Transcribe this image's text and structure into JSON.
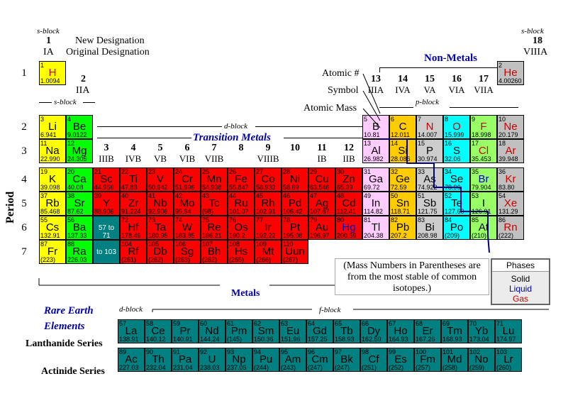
{
  "legend": {
    "s_block_left": "s-block",
    "s_block_right": "s-block",
    "s_block_row2": "s-block",
    "d_block": "d-block",
    "p_block": "p-block",
    "f_block": "f-block",
    "d_block_rare": "d-block",
    "new_designation": "New Designation",
    "original_designation": "Original Designation",
    "group1_new": "1",
    "group1_orig": "IA",
    "group18_new": "18",
    "group18_orig": "VIIIA",
    "group2_new": "2",
    "group2_orig": "IIA",
    "atomic_number": "Atomic #",
    "symbol": "Symbol",
    "atomic_mass": "Atomic Mass",
    "period": "Period",
    "non_metals": "Non-Metals",
    "transition_metals": "Transition Metals",
    "metals": "Metals",
    "rare_earth_line1": "Rare Earth",
    "rare_earth_line2": "Elements",
    "lanthanide_series": "Lanthanide Series",
    "actinide_series": "Actinide Series",
    "note_line1": "(Mass Numbers in Parentheses are",
    "note_line2": "from the most stable of common",
    "note_line3": "isotopes.)",
    "phases_title": "Phases",
    "phase_solid": "Solid",
    "phase_liquid": "Liquid",
    "phase_gas": "Gas"
  },
  "periods": [
    "1",
    "2",
    "3",
    "4",
    "5",
    "6",
    "7"
  ],
  "group_labels": [
    {
      "n": "3",
      "o": "IIIB"
    },
    {
      "n": "4",
      "o": "IVB"
    },
    {
      "n": "5",
      "o": "VB"
    },
    {
      "n": "6",
      "o": "VIB"
    },
    {
      "n": "7",
      "o": "VIIB"
    },
    {
      "n": "8",
      "o": ""
    },
    {
      "n": "9",
      "o": "VIIIB"
    },
    {
      "n": "10",
      "o": ""
    },
    {
      "n": "11",
      "o": "IB"
    },
    {
      "n": "12",
      "o": "IIB"
    },
    {
      "n": "13",
      "o": "IIIA"
    },
    {
      "n": "14",
      "o": "IVA"
    },
    {
      "n": "15",
      "o": "VA"
    },
    {
      "n": "16",
      "o": "VIA"
    },
    {
      "n": "17",
      "o": "VIIA"
    }
  ],
  "colors": {
    "nonmetal_gas_cyan": "#00ffff",
    "alkali": "#ffff00",
    "alkaline": "#00ff00",
    "transition": "#ff0000",
    "rare": "#008080",
    "boron_group": "#ffccff",
    "carbon_group": "#ffcc00",
    "other_gray": "#cccccc",
    "noble": "#c0c0c0",
    "nonmetal_green": "#99ff66",
    "nonmetal_blue_title": "#0000aa",
    "gas_text": "#cc0000",
    "liquid_text": "#000099"
  },
  "elements": [
    {
      "z": "1",
      "sym": "H",
      "mass": "1.0094",
      "bg": "#ffff00",
      "phase": "gas"
    },
    {
      "z": "2",
      "sym": "He",
      "mass": "4.00260",
      "bg": "#c0c0c0",
      "phase": "gas"
    },
    {
      "z": "3",
      "sym": "Li",
      "mass": "6.941",
      "bg": "#ffff00"
    },
    {
      "z": "4",
      "sym": "Be",
      "mass": "9.0122",
      "bg": "#00ff00"
    },
    {
      "z": "5",
      "sym": "B",
      "mass": "10.81",
      "bg": "#ffccff"
    },
    {
      "z": "6",
      "sym": "C",
      "mass": "12.011",
      "bg": "#ffcc00"
    },
    {
      "z": "7",
      "sym": "N",
      "mass": "14.007",
      "bg": "#cccccc",
      "phase": "gas"
    },
    {
      "z": "8",
      "sym": "O",
      "mass": "15.999",
      "bg": "#00ffff",
      "phase": "gas"
    },
    {
      "z": "9",
      "sym": "F",
      "mass": "18.998",
      "bg": "#99ff66",
      "phase": "gas"
    },
    {
      "z": "10",
      "sym": "Ne",
      "mass": "20.179",
      "bg": "#c0c0c0",
      "phase": "gas"
    },
    {
      "z": "11",
      "sym": "Na",
      "mass": "22.990",
      "bg": "#ffff00"
    },
    {
      "z": "12",
      "sym": "Mg",
      "mass": "24.305",
      "bg": "#00ff00"
    },
    {
      "z": "13",
      "sym": "Al",
      "mass": "26.982",
      "bg": "#ffccff"
    },
    {
      "z": "14",
      "sym": "Si",
      "mass": "28.086",
      "bg": "#ffcc00"
    },
    {
      "z": "15",
      "sym": "P",
      "mass": "30.974",
      "bg": "#cccccc"
    },
    {
      "z": "16",
      "sym": "S",
      "mass": "32.06",
      "bg": "#00ffff"
    },
    {
      "z": "17",
      "sym": "Cl",
      "mass": "35.453",
      "bg": "#99ff66",
      "phase": "gas"
    },
    {
      "z": "18",
      "sym": "Ar",
      "mass": "39.948",
      "bg": "#c0c0c0",
      "phase": "gas"
    },
    {
      "z": "19",
      "sym": "K",
      "mass": "39.098",
      "bg": "#ffff00"
    },
    {
      "z": "20",
      "sym": "Ca",
      "mass": "40.08",
      "bg": "#00ff00"
    },
    {
      "z": "21",
      "sym": "Sc",
      "mass": "44.956",
      "bg": "#ff0000"
    },
    {
      "z": "22",
      "sym": "Ti",
      "mass": "47.88",
      "bg": "#ff0000"
    },
    {
      "z": "23",
      "sym": "V",
      "mass": "50.942",
      "bg": "#ff0000"
    },
    {
      "z": "24",
      "sym": "Cr",
      "mass": "51.996",
      "bg": "#ff0000"
    },
    {
      "z": "25",
      "sym": "Mn",
      "mass": "54.938",
      "bg": "#ff0000"
    },
    {
      "z": "26",
      "sym": "Fe",
      "mass": "55.847",
      "bg": "#ff0000"
    },
    {
      "z": "27",
      "sym": "Co",
      "mass": "58.933",
      "bg": "#ff0000"
    },
    {
      "z": "28",
      "sym": "Ni",
      "mass": "58.69",
      "bg": "#ff0000"
    },
    {
      "z": "29",
      "sym": "Cu",
      "mass": "63.546",
      "bg": "#ff0000"
    },
    {
      "z": "30",
      "sym": "Zn",
      "mass": "65.39",
      "bg": "#ff0000"
    },
    {
      "z": "31",
      "sym": "Ga",
      "mass": "69.72",
      "bg": "#ffccff"
    },
    {
      "z": "32",
      "sym": "Ge",
      "mass": "72.59",
      "bg": "#ffcc00"
    },
    {
      "z": "33",
      "sym": "As",
      "mass": "74.922",
      "bg": "#cccccc"
    },
    {
      "z": "34",
      "sym": "Se",
      "mass": "78.96",
      "bg": "#00ffff"
    },
    {
      "z": "35",
      "sym": "Br",
      "mass": "79.904",
      "bg": "#99ff66",
      "phase": "liquid"
    },
    {
      "z": "36",
      "sym": "Kr",
      "mass": "83.80",
      "bg": "#c0c0c0",
      "phase": "gas"
    },
    {
      "z": "37",
      "sym": "Rb",
      "mass": "85.468",
      "bg": "#ffff00"
    },
    {
      "z": "38",
      "sym": "Sr",
      "mass": "87.62",
      "bg": "#00ff00"
    },
    {
      "z": "39",
      "sym": "Y",
      "mass": "88.906",
      "bg": "#ff0000"
    },
    {
      "z": "40",
      "sym": "Zr",
      "mass": "91.224",
      "bg": "#ff0000"
    },
    {
      "z": "41",
      "sym": "Nb",
      "mass": "92.906",
      "bg": "#ff0000"
    },
    {
      "z": "42",
      "sym": "Mo",
      "mass": "95.94",
      "bg": "#ff0000"
    },
    {
      "z": "43",
      "sym": "Tc",
      "mass": "(98)",
      "bg": "#ff0000"
    },
    {
      "z": "44",
      "sym": "Ru",
      "mass": "101.07",
      "bg": "#ff0000"
    },
    {
      "z": "45",
      "sym": "Rh",
      "mass": "102.91",
      "bg": "#ff0000"
    },
    {
      "z": "46",
      "sym": "Pd",
      "mass": "106.42",
      "bg": "#ff0000"
    },
    {
      "z": "47",
      "sym": "Ag",
      "mass": "107.87",
      "bg": "#ff0000"
    },
    {
      "z": "48",
      "sym": "Cd",
      "mass": "112.41",
      "bg": "#ff0000"
    },
    {
      "z": "49",
      "sym": "In",
      "mass": "114.82",
      "bg": "#ffccff"
    },
    {
      "z": "50",
      "sym": "Sn",
      "mass": "118.71",
      "bg": "#ffcc00"
    },
    {
      "z": "51",
      "sym": "Sb",
      "mass": "121.75",
      "bg": "#cccccc"
    },
    {
      "z": "52",
      "sym": "Te",
      "mass": "127.60",
      "bg": "#00ffff"
    },
    {
      "z": "53",
      "sym": "I",
      "mass": "126.91",
      "bg": "#99ff66"
    },
    {
      "z": "54",
      "sym": "Xe",
      "mass": "131.29",
      "bg": "#c0c0c0",
      "phase": "gas"
    },
    {
      "z": "55",
      "sym": "Cs",
      "mass": "132.91",
      "bg": "#ffff00"
    },
    {
      "z": "56",
      "sym": "Ba",
      "mass": "137.33",
      "bg": "#00ff00"
    },
    {
      "z": "57",
      "sym": "",
      "mass": "",
      "bg": "#008080"
    },
    {
      "z": "72",
      "sym": "Hf",
      "mass": "178.49",
      "bg": "#ff0000"
    },
    {
      "z": "73",
      "sym": "Ta",
      "mass": "180.95",
      "bg": "#ff0000"
    },
    {
      "z": "74",
      "sym": "W",
      "mass": "183.85",
      "bg": "#ff0000"
    },
    {
      "z": "75",
      "sym": "Re",
      "mass": "186.21",
      "bg": "#ff0000"
    },
    {
      "z": "76",
      "sym": "Os",
      "mass": "190.2",
      "bg": "#ff0000"
    },
    {
      "z": "77",
      "sym": "Ir",
      "mass": "192.22",
      "bg": "#ff0000"
    },
    {
      "z": "78",
      "sym": "Pt",
      "mass": "195.08",
      "bg": "#ff0000"
    },
    {
      "z": "79",
      "sym": "Au",
      "mass": "196.97",
      "bg": "#ff0000"
    },
    {
      "z": "80",
      "sym": "Hg",
      "mass": "200.59",
      "bg": "#ff0000",
      "phase": "liquid"
    },
    {
      "z": "81",
      "sym": "Tl",
      "mass": "204.38",
      "bg": "#ffccff"
    },
    {
      "z": "82",
      "sym": "Pb",
      "mass": "207.2",
      "bg": "#ffcc00"
    },
    {
      "z": "83",
      "sym": "Bi",
      "mass": "208.98",
      "bg": "#cccccc"
    },
    {
      "z": "84",
      "sym": "Po",
      "mass": "(209)",
      "bg": "#00ffff"
    },
    {
      "z": "85",
      "sym": "At",
      "mass": "(210)",
      "bg": "#99ff66"
    },
    {
      "z": "86",
      "sym": "Rn",
      "mass": "(222)",
      "bg": "#c0c0c0",
      "phase": "gas"
    },
    {
      "z": "87",
      "sym": "Fr",
      "mass": "(223)",
      "bg": "#ffff00"
    },
    {
      "z": "88",
      "sym": "Ra",
      "mass": "226.03",
      "bg": "#00ff00"
    },
    {
      "z": "89",
      "sym": "",
      "mass": "",
      "bg": "#008080"
    },
    {
      "z": "104",
      "sym": "Rf",
      "mass": "(261)",
      "bg": "#ff0000"
    },
    {
      "z": "105",
      "sym": "Db",
      "mass": "(262)",
      "bg": "#ff0000"
    },
    {
      "z": "106",
      "sym": "Sg",
      "mass": "(263)",
      "bg": "#ff0000"
    },
    {
      "z": "107",
      "sym": "Bh",
      "mass": "(262)",
      "bg": "#ff0000"
    },
    {
      "z": "108",
      "sym": "Hs",
      "mass": "(265)",
      "bg": "#ff0000"
    },
    {
      "z": "109",
      "sym": "Mt",
      "mass": "(266)",
      "bg": "#ff0000"
    },
    {
      "z": "110",
      "sym": "Uun",
      "mass": "(267)",
      "bg": "#ff0000"
    }
  ],
  "placeholder_la": {
    "range": "57 to 71"
  },
  "placeholder_ac": {
    "range": "to 103"
  },
  "lanthanides": [
    {
      "z": "57",
      "sym": "La",
      "mass": "138.91"
    },
    {
      "z": "58",
      "sym": "Ce",
      "mass": "140.12"
    },
    {
      "z": "59",
      "sym": "Pr",
      "mass": "140.91"
    },
    {
      "z": "60",
      "sym": "Nd",
      "mass": "144.24"
    },
    {
      "z": "61",
      "sym": "Pm",
      "mass": "(145)"
    },
    {
      "z": "62",
      "sym": "Sm",
      "mass": "150.36"
    },
    {
      "z": "63",
      "sym": "Eu",
      "mass": "151.96"
    },
    {
      "z": "64",
      "sym": "Gd",
      "mass": "157.25"
    },
    {
      "z": "65",
      "sym": "Tb",
      "mass": "158.93"
    },
    {
      "z": "66",
      "sym": "Dy",
      "mass": "162.50"
    },
    {
      "z": "67",
      "sym": "Ho",
      "mass": "164.93"
    },
    {
      "z": "68",
      "sym": "Er",
      "mass": "167.26"
    },
    {
      "z": "69",
      "sym": "Tm",
      "mass": "168.93"
    },
    {
      "z": "70",
      "sym": "Yb",
      "mass": "173.04"
    },
    {
      "z": "71",
      "sym": "Lu",
      "mass": "174.97"
    }
  ],
  "actinides": [
    {
      "z": "89",
      "sym": "Ac",
      "mass": "227.03"
    },
    {
      "z": "90",
      "sym": "Th",
      "mass": "232.04"
    },
    {
      "z": "91",
      "sym": "Pa",
      "mass": "231.04"
    },
    {
      "z": "92",
      "sym": "U",
      "mass": "238.03"
    },
    {
      "z": "93",
      "sym": "Np",
      "mass": "237.05"
    },
    {
      "z": "94",
      "sym": "Pu",
      "mass": "(244)"
    },
    {
      "z": "95",
      "sym": "Am",
      "mass": "(243)"
    },
    {
      "z": "96",
      "sym": "Cm",
      "mass": "(247)"
    },
    {
      "z": "97",
      "sym": "Bk",
      "mass": "(247)"
    },
    {
      "z": "98",
      "sym": "Cf",
      "mass": "(251)"
    },
    {
      "z": "99",
      "sym": "Es",
      "mass": "(252)"
    },
    {
      "z": "100",
      "sym": "Fm",
      "mass": "(257)"
    },
    {
      "z": "101",
      "sym": "Md",
      "mass": "(258)"
    },
    {
      "z": "102",
      "sym": "No",
      "mass": "(259)"
    },
    {
      "z": "103",
      "sym": "Lr",
      "mass": "(260)"
    }
  ]
}
